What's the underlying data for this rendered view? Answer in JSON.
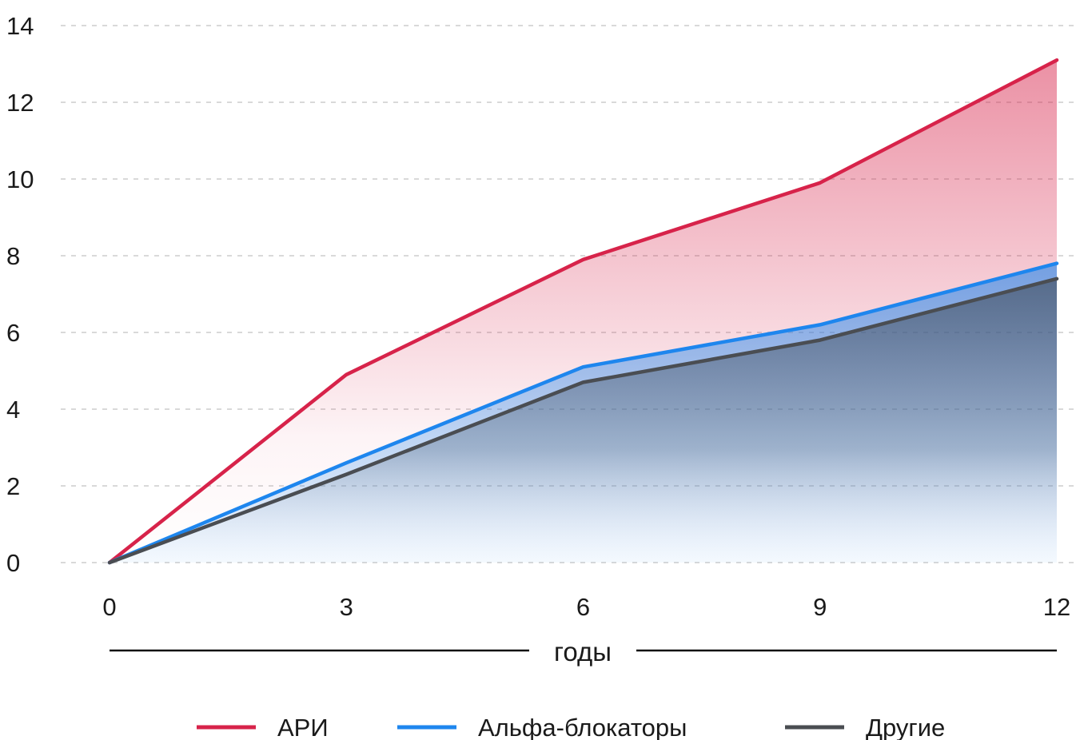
{
  "chart_data": {
    "type": "area",
    "title": "",
    "xlabel": "годы",
    "ylabel": "",
    "x": [
      0,
      3,
      6,
      9,
      12
    ],
    "xlim": [
      0,
      12
    ],
    "ylim": [
      0,
      14
    ],
    "x_ticks": [
      "0",
      "3",
      "6",
      "9",
      "12"
    ],
    "y_ticks": [
      "0",
      "2",
      "4",
      "6",
      "8",
      "10",
      "12",
      "14"
    ],
    "grid": true,
    "legend_position": "bottom",
    "series": [
      {
        "name": "АРИ",
        "values": [
          0,
          4.9,
          7.9,
          9.9,
          13.1
        ],
        "color": "#d7234a"
      },
      {
        "name": "Альфа-блокаторы",
        "values": [
          0,
          2.6,
          5.1,
          6.2,
          7.8
        ],
        "color": "#1e86ee"
      },
      {
        "name": "Другие",
        "values": [
          0,
          2.3,
          4.7,
          5.8,
          7.4
        ],
        "color": "#4a4d52"
      }
    ]
  }
}
